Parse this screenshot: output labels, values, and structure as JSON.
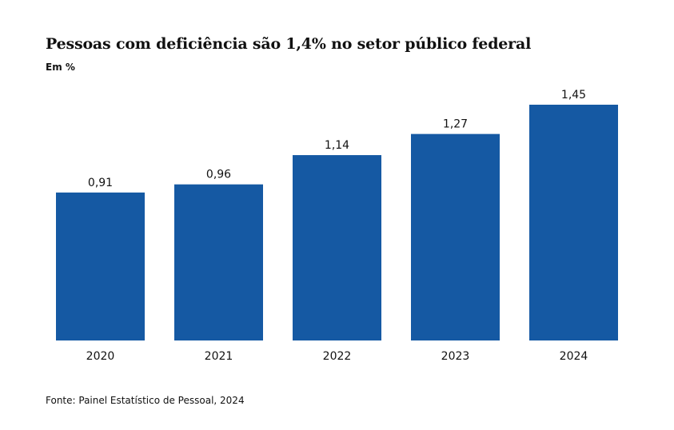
{
  "chart_data": {
    "type": "bar",
    "title": "Pessoas com deficiência são 1,4% no setor público federal",
    "subtitle": "Em %",
    "categories": [
      "2020",
      "2021",
      "2022",
      "2023",
      "2024"
    ],
    "values": [
      0.91,
      0.96,
      1.14,
      1.27,
      1.45
    ],
    "value_labels": [
      "0,91",
      "0,96",
      "1,14",
      "1,27",
      "1,45"
    ],
    "ylim": [
      0,
      1.45
    ],
    "grid": false,
    "legend": "none",
    "bar_color": "#1559A3",
    "source": "Fonte: Painel Estatístico de Pessoal, 2024"
  }
}
